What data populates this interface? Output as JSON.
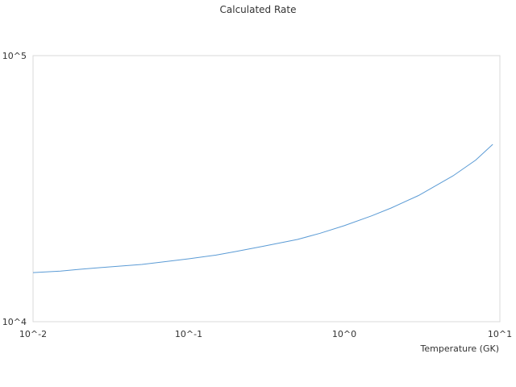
{
  "chart_data": {
    "type": "line",
    "title": "Calculated Rate",
    "x_label": "Temperature (GK)",
    "x": [
      0.01,
      0.015,
      0.02,
      0.03,
      0.05,
      0.07,
      0.1,
      0.15,
      0.2,
      0.3,
      0.5,
      0.7,
      1,
      1.5,
      2,
      3,
      5,
      7,
      9
    ],
    "values": [
      15300,
      15500,
      15740,
      16050,
      16410,
      16800,
      17230,
      17800,
      18350,
      19200,
      20370,
      21500,
      22950,
      25000,
      26740,
      29800,
      35330,
      40500,
      46420
    ],
    "color": "#5b9bd5",
    "xscale": "log",
    "yscale": "log",
    "xlim": [
      0.01,
      10
    ],
    "ylim": [
      10000,
      100000
    ],
    "xticks": [
      {
        "value": 0.01,
        "label": "10^-2"
      },
      {
        "value": 0.1,
        "label": "10^-1"
      },
      {
        "value": 1,
        "label": "10^0"
      },
      {
        "value": 10,
        "label": "10^1"
      }
    ],
    "yticks": [
      {
        "value": 10000,
        "label": "10^4"
      },
      {
        "value": 100000,
        "label": "10^5"
      }
    ]
  }
}
